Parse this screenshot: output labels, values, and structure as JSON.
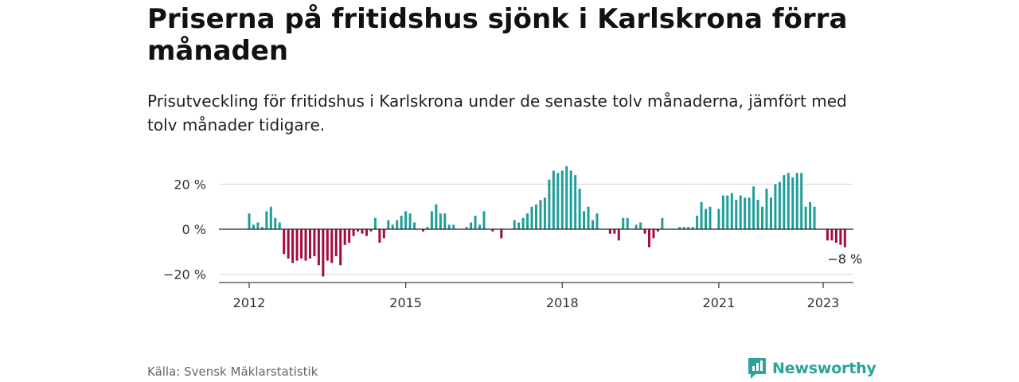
{
  "title": "Priserna på fritidshus sjönk i Karlskrona förra månaden",
  "subtitle": "Prisutveckling för fritidshus i Karlskrona under de senaste tolv månaderna, jämfört med tolv månader tidigare.",
  "source": "Källa: Svensk Mäklarstatistik",
  "brand": "Newsworthy",
  "colors": {
    "positive": "#1f9e99",
    "negative": "#a30b3f",
    "brand": "#2aa39a"
  },
  "chart_data": {
    "type": "bar",
    "start": "2012-01",
    "ylim": [
      -25,
      32
    ],
    "y_ticks": [
      {
        "value": 20,
        "label": "20 %"
      },
      {
        "value": 0,
        "label": "0 %"
      },
      {
        "value": -20,
        "label": "−20 %"
      }
    ],
    "x_ticks": [
      {
        "index": 0,
        "label": "2012"
      },
      {
        "index": 36,
        "label": "2015"
      },
      {
        "index": 72,
        "label": "2018"
      },
      {
        "index": 108,
        "label": "2021"
      },
      {
        "index": 132,
        "label": "2023"
      }
    ],
    "last_label": "−8 %",
    "values": [
      7,
      2,
      3,
      1,
      8,
      10,
      5,
      3,
      -11,
      -13,
      -15,
      -14,
      -13,
      -14,
      -13,
      -12,
      -16,
      -21,
      -14,
      -15,
      -12,
      -16,
      -7,
      -6,
      -3,
      -1,
      -2,
      -3,
      -1,
      5,
      -6,
      -4,
      4,
      2,
      4,
      6,
      8,
      7,
      3,
      0,
      -1,
      1,
      8,
      11,
      7,
      7,
      2,
      2,
      0,
      0,
      1,
      3,
      6,
      2,
      8,
      0,
      -1,
      0,
      -4,
      0,
      0,
      4,
      3,
      5,
      7,
      10,
      11,
      13,
      14,
      22,
      26,
      25,
      26,
      28,
      26,
      24,
      18,
      8,
      10,
      4,
      7,
      0,
      0,
      -2,
      -2,
      -5,
      5,
      5,
      0,
      2,
      3,
      -2,
      -8,
      -4,
      -1,
      5,
      0,
      0,
      0,
      1,
      1,
      1,
      1,
      6,
      12,
      9,
      10,
      0,
      9,
      15,
      15,
      16,
      13,
      15,
      14,
      14,
      19,
      13,
      10,
      18,
      14,
      20,
      21,
      24,
      25,
      23,
      25,
      25,
      10,
      12,
      10,
      0,
      0,
      -5,
      -5,
      -6,
      -7,
      -8
    ]
  }
}
